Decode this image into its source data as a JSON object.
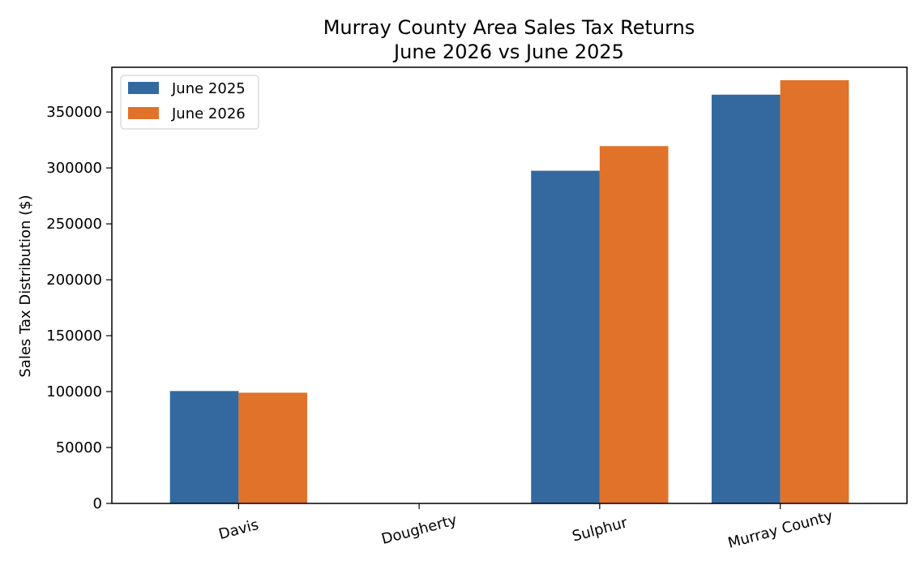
{
  "chart_data": {
    "type": "bar",
    "title": "Murray County Area Sales Tax Returns",
    "subtitle": "June 2026 vs June 2025",
    "xlabel": "",
    "ylabel": "Sales Tax Distribution ($)",
    "categories": [
      "Davis",
      "Dougherty",
      "Sulphur",
      "Murray County"
    ],
    "series": [
      {
        "name": "June 2025",
        "values": [
          100500,
          0,
          297500,
          365500
        ],
        "color": "#33699e"
      },
      {
        "name": "June 2026",
        "values": [
          99000,
          0,
          319500,
          378500
        ],
        "color": "#e07229"
      }
    ],
    "ylim": [
      0,
      390000
    ],
    "yticks": [
      0,
      50000,
      100000,
      150000,
      200000,
      250000,
      300000,
      350000
    ],
    "ytick_labels": [
      "0",
      "50000",
      "100000",
      "150000",
      "200000",
      "250000",
      "300000",
      "350000"
    ],
    "grid": false,
    "legend_position": "top-left"
  }
}
